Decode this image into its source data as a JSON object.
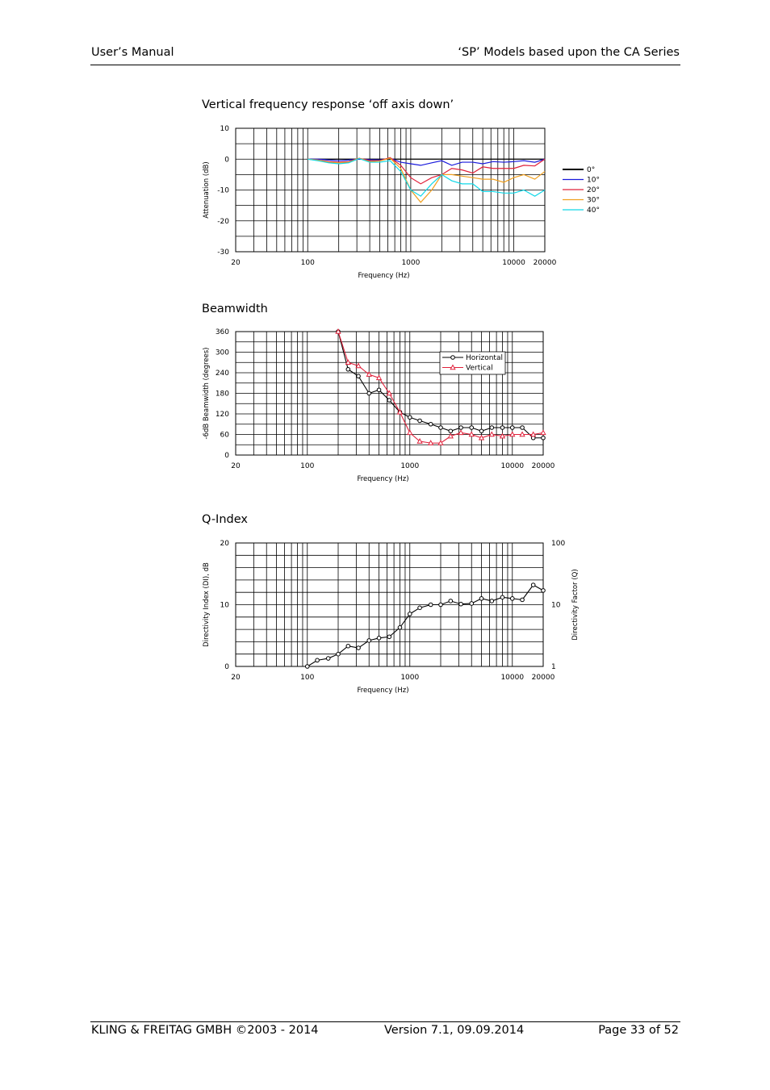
{
  "header": {
    "left": "User’s Manual",
    "right": "‘SP’ Models based upon the CA Series"
  },
  "footer": {
    "left": "KLING & FREITAG GMBH ©2003 - 2014",
    "middle": "Version 7.1, 09.09.2014",
    "right": "Page 33 of  52"
  },
  "sections": {
    "s1": "Vertical frequency response ‘off axis down’",
    "s2": "Beamwidth",
    "s3": "Q-Index"
  },
  "chart_data": [
    {
      "type": "line",
      "title": "Vertical frequency response ‘off axis down’",
      "xlabel": "Frequency (Hz)",
      "ylabel": "Attenuation (dB)",
      "x_scale": "log",
      "xlim": [
        20,
        20000
      ],
      "ylim": [
        -30,
        10
      ],
      "xticks": [
        "20",
        "100",
        "1000",
        "10000",
        "20000"
      ],
      "yticks": [
        "10",
        "0",
        "-10",
        "-20",
        "-30"
      ],
      "grid": true,
      "legend": "right",
      "x": [
        100,
        125,
        160,
        200,
        250,
        315,
        400,
        500,
        630,
        800,
        1000,
        1250,
        1600,
        2000,
        2500,
        3150,
        4000,
        5000,
        6300,
        8000,
        10000,
        12500,
        16000,
        20000
      ],
      "series": [
        {
          "name": "0°",
          "color": "#000000",
          "values": [
            0,
            0,
            0,
            0,
            0,
            0,
            0,
            0,
            0,
            0,
            0,
            0,
            0,
            0,
            0,
            0,
            0,
            0,
            0,
            0,
            0,
            0,
            0,
            0
          ]
        },
        {
          "name": "10°",
          "color": "#1a1adc",
          "values": [
            0,
            0,
            -0.3,
            -0.5,
            -0.3,
            0,
            -0.2,
            -0.3,
            0.3,
            -1,
            -1.5,
            -2,
            -1.2,
            -0.5,
            -2,
            -1,
            -1,
            -1.5,
            -0.8,
            -1,
            -0.8,
            -0.5,
            -1,
            0
          ]
        },
        {
          "name": "20°",
          "color": "#e0203a",
          "values": [
            0,
            -0.3,
            -0.8,
            -1,
            -0.8,
            0.3,
            -0.5,
            -0.5,
            0.5,
            -2,
            -6,
            -8,
            -6,
            -5,
            -3,
            -3.5,
            -4.5,
            -2.5,
            -3,
            -3,
            -3,
            -2,
            -2.2,
            0
          ]
        },
        {
          "name": "30°",
          "color": "#f0a020",
          "values": [
            0,
            -0.3,
            -1,
            -1.2,
            -1,
            0.3,
            -0.8,
            -0.6,
            0.3,
            -3,
            -10,
            -14,
            -10,
            -5,
            -5,
            -5.5,
            -6,
            -6.5,
            -6.5,
            -7.5,
            -6,
            -5,
            -6.5,
            -4
          ]
        },
        {
          "name": "40°",
          "color": "#10d8e8",
          "values": [
            0,
            -0.5,
            -1.2,
            -1.5,
            -1.2,
            0.2,
            -1,
            -1,
            -0.5,
            -4,
            -10,
            -12,
            -8,
            -5,
            -7,
            -8,
            -8,
            -10.5,
            -10.5,
            -11,
            -11,
            -10,
            -12,
            -10
          ]
        }
      ]
    },
    {
      "type": "line",
      "title": "Beamwidth",
      "xlabel": "Frequency (Hz)",
      "ylabel": "-6dB Beamwidth (degrees)",
      "x_scale": "log",
      "xlim": [
        20,
        20000
      ],
      "ylim": [
        0,
        360
      ],
      "xticks": [
        "20",
        "100",
        "1000",
        "10000",
        "20000"
      ],
      "yticks": [
        "360",
        "300",
        "240",
        "180",
        "120",
        "60",
        "0"
      ],
      "grid": true,
      "legend": "top-right",
      "x": [
        200,
        250,
        315,
        400,
        500,
        630,
        800,
        1000,
        1250,
        1600,
        2000,
        2500,
        3150,
        4000,
        5000,
        6300,
        8000,
        10000,
        12500,
        16000,
        20000
      ],
      "series": [
        {
          "name": "Horizontal",
          "color": "#000000",
          "marker": "circle",
          "values": [
            360,
            250,
            230,
            180,
            190,
            160,
            125,
            110,
            100,
            90,
            80,
            70,
            80,
            80,
            70,
            80,
            80,
            80,
            80,
            50,
            50
          ]
        },
        {
          "name": "Vertical",
          "color": "#e0203a",
          "marker": "triangle",
          "values": [
            360,
            270,
            260,
            235,
            225,
            180,
            125,
            65,
            40,
            35,
            35,
            55,
            65,
            60,
            50,
            60,
            55,
            60,
            60,
            60,
            65
          ]
        }
      ]
    },
    {
      "type": "line",
      "title": "Q-Index",
      "xlabel": "Frequency (Hz)",
      "ylabel": "Directivity Index (DI), dB",
      "ylabel_right": "Directivity Factor (Q)",
      "x_scale": "log",
      "xlim": [
        20,
        20000
      ],
      "ylim": [
        0,
        20
      ],
      "xticks": [
        "20",
        "100",
        "1000",
        "10000",
        "20000"
      ],
      "yticks": [
        "20",
        "10",
        "0"
      ],
      "yticks_right": [
        "100",
        "10",
        "1"
      ],
      "grid": true,
      "x": [
        100,
        125,
        160,
        200,
        250,
        315,
        400,
        500,
        630,
        800,
        1000,
        1250,
        1600,
        2000,
        2500,
        3150,
        4000,
        5000,
        6300,
        8000,
        10000,
        12500,
        16000,
        20000
      ],
      "series": [
        {
          "color": "#000000",
          "marker": "circle",
          "values": [
            0,
            1,
            1.3,
            2,
            3.3,
            3,
            4.2,
            4.6,
            4.8,
            6.3,
            8.5,
            9.5,
            10,
            10,
            10.6,
            10.1,
            10.2,
            11,
            10.6,
            11.2,
            11,
            10.8,
            13.2,
            12.3
          ]
        }
      ]
    }
  ]
}
